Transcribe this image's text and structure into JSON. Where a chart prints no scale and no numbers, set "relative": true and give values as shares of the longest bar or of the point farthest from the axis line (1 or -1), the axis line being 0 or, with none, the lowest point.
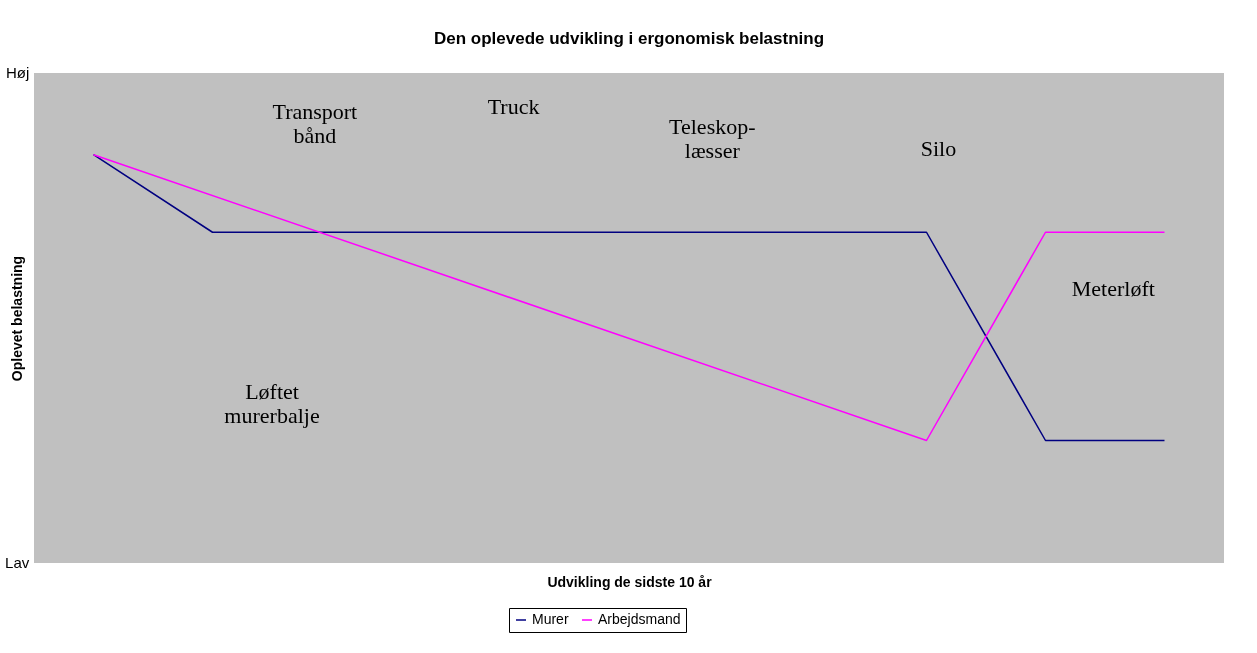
{
  "chart_data": {
    "type": "line",
    "title": "Den oplevede udvikling i ergonomisk belastning",
    "xlabel": "Udvikling de sidste 10 år",
    "ylabel": "Oplevet belastning",
    "categories": [
      null,
      null,
      null,
      null,
      null,
      null,
      null,
      null,
      null,
      null
    ],
    "relative": true,
    "tick_labels": false,
    "series": [
      {
        "name": "Murer",
        "color": "#000080",
        "values": [
          1,
          0.81,
          null,
          null,
          null,
          null,
          null,
          0.81,
          0.3,
          0.3
        ]
      },
      {
        "name": "Arbejdsmand",
        "color": "#ff00ff",
        "values": [
          1,
          null,
          null,
          null,
          null,
          null,
          null,
          0.3,
          0.81,
          0.81
        ]
      }
    ],
    "annotations": [
      "Høj",
      "Lav",
      "Transport\nbånd",
      "Truck",
      "Teleskop-\nlæsser",
      "Silo",
      "Meterløft",
      "Løftet\nmurerbalje"
    ],
    "legend": "bottom",
    "marker": "none",
    "line_style": "solid"
  }
}
